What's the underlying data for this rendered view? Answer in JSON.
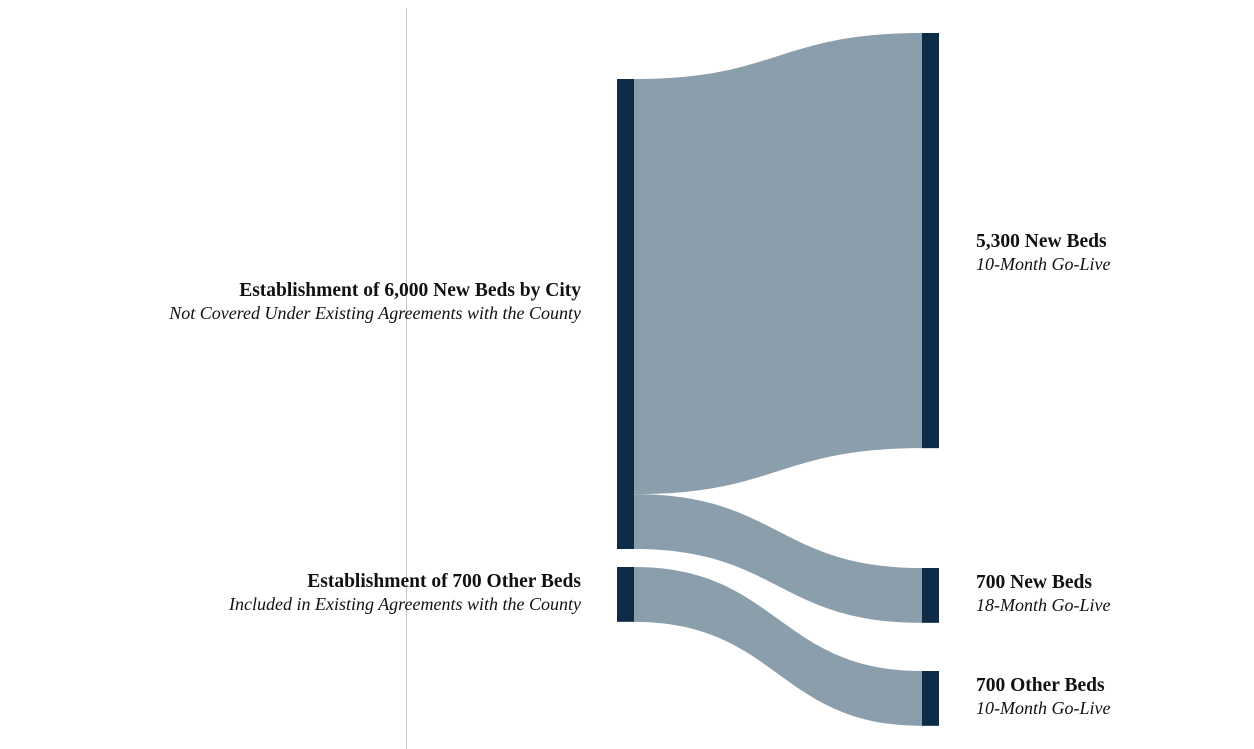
{
  "colors": {
    "node": "#0d2c48",
    "link": "#8b9eac",
    "divider": "#c8c8c8"
  },
  "nodes": [
    {
      "id": "city_6000",
      "title": "Establishment of 6,000 New Beds by City",
      "subtitle": "Not Covered Under Existing Agreements with the County",
      "value": 6000,
      "side": "left"
    },
    {
      "id": "other_700_src",
      "title": "Establishment of 700 Other Beds",
      "subtitle": "Included in Existing Agreements with the County",
      "value": 700,
      "side": "left"
    },
    {
      "id": "new_5300",
      "title": "5,300 New Beds",
      "subtitle": "10-Month Go-Live",
      "value": 5300,
      "side": "right"
    },
    {
      "id": "new_700",
      "title": "700 New Beds",
      "subtitle": "18-Month Go-Live",
      "value": 700,
      "side": "right"
    },
    {
      "id": "other_700_dst",
      "title": "700 Other Beds",
      "subtitle": "10-Month Go-Live",
      "value": 700,
      "side": "right"
    }
  ],
  "links": [
    {
      "source": "city_6000",
      "target": "new_5300",
      "value": 5300
    },
    {
      "source": "city_6000",
      "target": "new_700",
      "value": 700
    },
    {
      "source": "other_700_src",
      "target": "other_700_dst",
      "value": 700
    }
  ]
}
